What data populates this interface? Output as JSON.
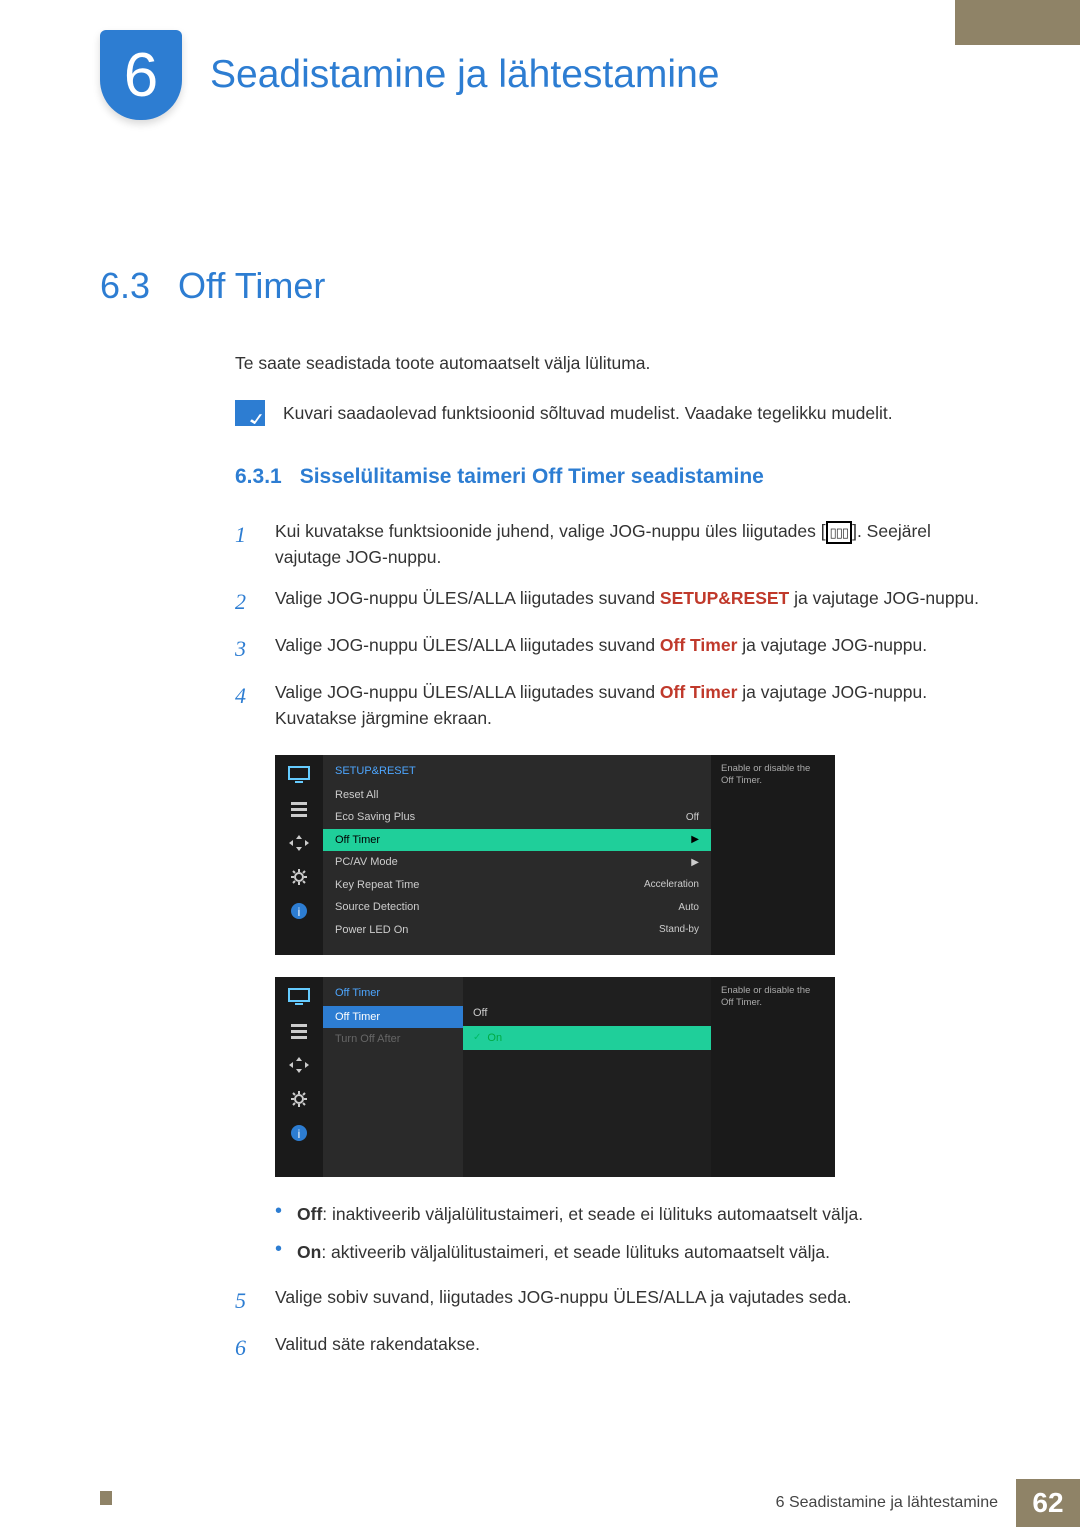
{
  "colors": {
    "accent_blue": "#2d7dd2",
    "accent_olive": "#8f8367",
    "highlight_green": "#1fcf9a",
    "inline_red": "#c0392b",
    "text": "#333333",
    "background": "#ffffff"
  },
  "chapter": {
    "number": "6",
    "title": "Seadistamine ja lähtestamine"
  },
  "section": {
    "number": "6.3",
    "title": "Off Timer"
  },
  "intro": "Te saate seadistada toote automaatselt välja lülituma.",
  "note": "Kuvari saadaolevad funktsioonid sõltuvad mudelist. Vaadake tegelikku mudelit.",
  "subsection": {
    "number": "6.3.1",
    "title": "Sisselülitamise taimeri Off Timer seadistamine"
  },
  "steps": [
    {
      "n": "1",
      "pre": "Kui kuvatakse funktsioonide juhend, valige JOG-nuppu üles liigutades [",
      "post": "]. Seejärel vajutage JOG-nuppu.",
      "inline_icon": "▥"
    },
    {
      "n": "2",
      "pre": "Valige JOG-nuppu ÜLES/ALLA liigutades suvand ",
      "bold": "SETUP&RESET",
      "post": " ja vajutage JOG-nuppu."
    },
    {
      "n": "3",
      "pre": "Valige JOG-nuppu ÜLES/ALLA liigutades suvand ",
      "bold": "Off Timer",
      "post": " ja vajutage JOG-nuppu."
    },
    {
      "n": "4",
      "pre": "Valige JOG-nuppu ÜLES/ALLA liigutades suvand ",
      "bold": "Off Timer",
      "post": " ja vajutage JOG-nuppu. Kuvatakse järgmine ekraan."
    }
  ],
  "osd1": {
    "title": "SETUP&RESET",
    "tooltip": "Enable or disable the Off Timer.",
    "rows": [
      {
        "label": "Reset All",
        "val": ""
      },
      {
        "label": "Eco Saving Plus",
        "val": "Off"
      },
      {
        "label": "Off Timer",
        "val": "▶",
        "highlight": true
      },
      {
        "label": "PC/AV Mode",
        "val": "▶"
      },
      {
        "label": "Key Repeat Time",
        "val": "Acceleration"
      },
      {
        "label": "Source Detection",
        "val": "Auto"
      },
      {
        "label": "Power LED On",
        "val": "Stand-by"
      }
    ]
  },
  "osd2": {
    "title": "Off Timer",
    "tooltip": "Enable or disable the Off Timer.",
    "submenu": [
      {
        "label": "Off Timer",
        "highlight": "blue"
      },
      {
        "label": "Turn Off After"
      }
    ],
    "options": [
      {
        "label": "Off"
      },
      {
        "label": "On",
        "selected": true
      }
    ]
  },
  "bullets": [
    {
      "key": "Off",
      "text": ": inaktiveerib väljalülitustaimeri, et seade ei lülituks automaatselt välja."
    },
    {
      "key": "On",
      "text": ": aktiveerib väljalülitustaimeri, et seade lülituks automaatselt välja."
    }
  ],
  "steps_after": [
    {
      "n": "5",
      "text": "Valige sobiv suvand, liigutades JOG-nuppu ÜLES/ALLA ja vajutades seda."
    },
    {
      "n": "6",
      "text": "Valitud säte rakendatakse."
    }
  ],
  "footer": {
    "label": "6 Seadistamine ja lähtestamine",
    "page": "62"
  },
  "sidebar_icons": [
    "monitor",
    "list",
    "arrows",
    "gear",
    "info"
  ]
}
